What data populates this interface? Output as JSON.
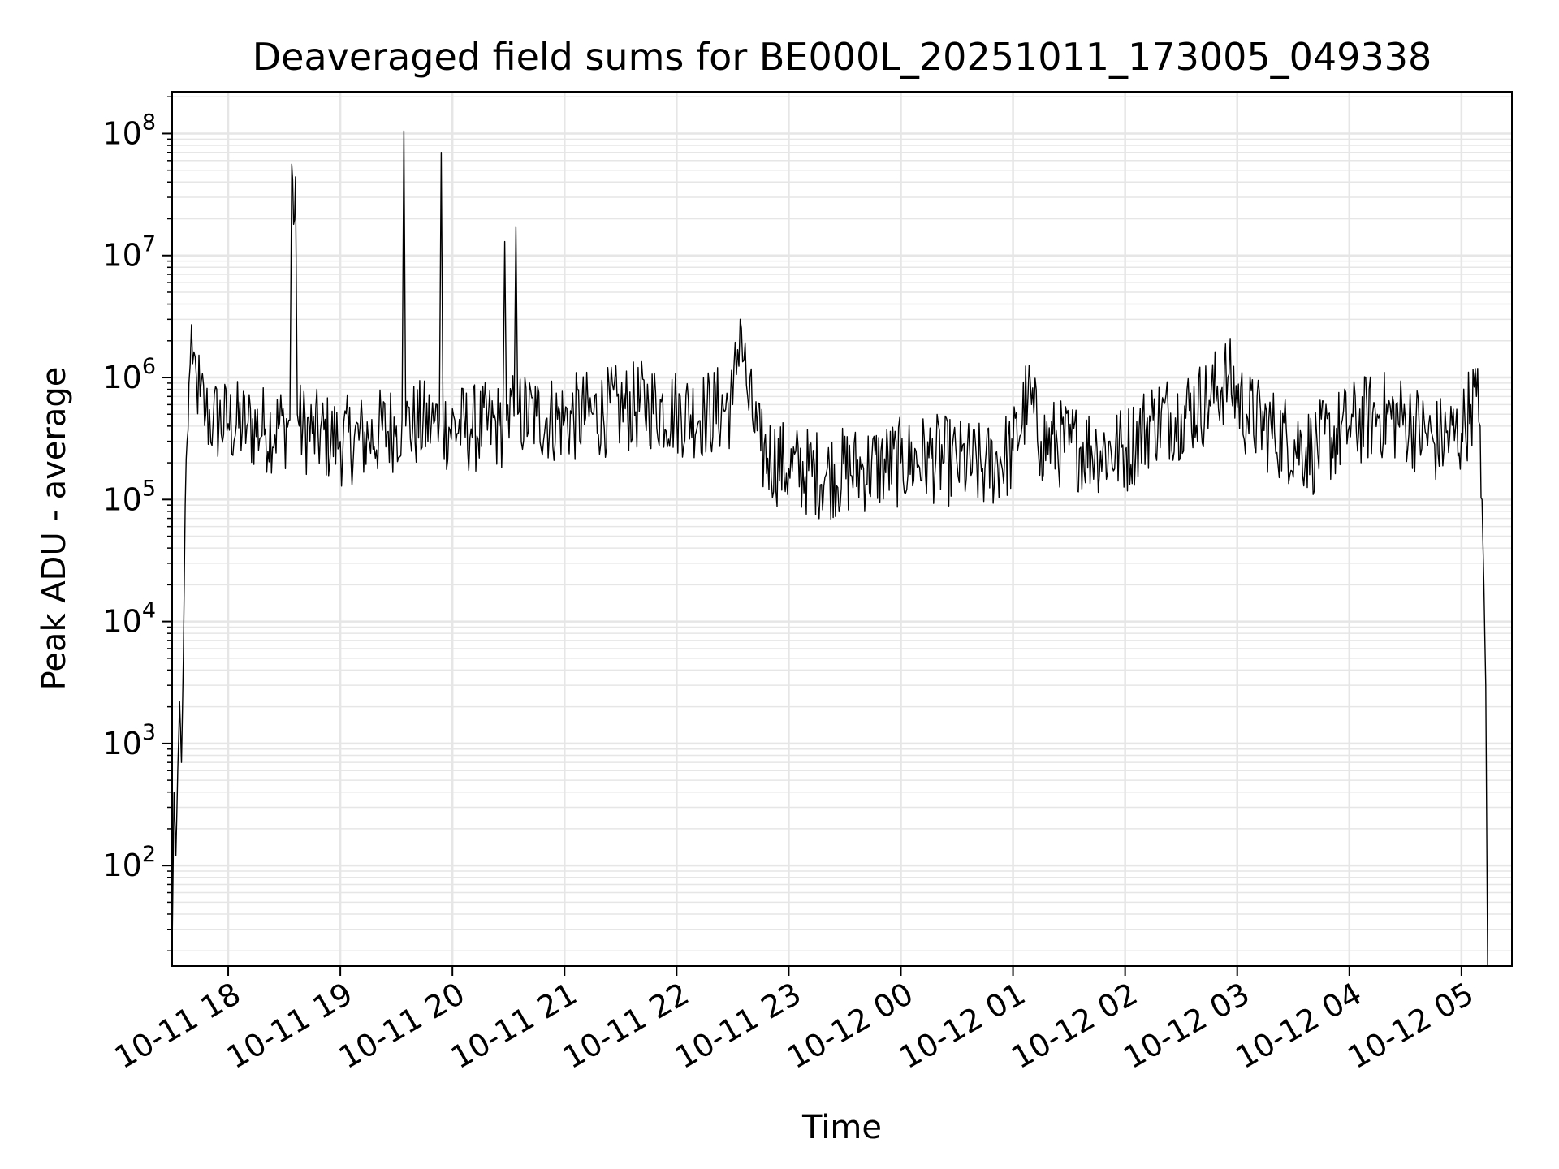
{
  "chart_data": {
    "type": "line",
    "title": "Deaveraged field sums for BE000L_20251011_173005_049338",
    "xlabel": "Time",
    "ylabel": "Peak ADU - average",
    "yscale": "log",
    "grid": true,
    "grid_minor": true,
    "xlim": [
      "2025-10-11T17:30:00",
      "2025-10-12T05:27:00"
    ],
    "ylim": [
      15,
      220000000
    ],
    "x_ticks": [
      {
        "value": "2025-10-11T18:00:00",
        "label": "10-11 18"
      },
      {
        "value": "2025-10-11T19:00:00",
        "label": "10-11 19"
      },
      {
        "value": "2025-10-11T20:00:00",
        "label": "10-11 20"
      },
      {
        "value": "2025-10-11T21:00:00",
        "label": "10-11 21"
      },
      {
        "value": "2025-10-11T22:00:00",
        "label": "10-11 22"
      },
      {
        "value": "2025-10-11T23:00:00",
        "label": "10-11 23"
      },
      {
        "value": "2025-10-12T00:00:00",
        "label": "10-12 00"
      },
      {
        "value": "2025-10-12T01:00:00",
        "label": "10-12 01"
      },
      {
        "value": "2025-10-12T02:00:00",
        "label": "10-12 02"
      },
      {
        "value": "2025-10-12T03:00:00",
        "label": "10-12 03"
      },
      {
        "value": "2025-10-12T04:00:00",
        "label": "10-12 04"
      },
      {
        "value": "2025-10-12T05:00:00",
        "label": "10-12 05"
      }
    ],
    "y_ticks": [
      {
        "value": 100,
        "base": "10",
        "exp": "2"
      },
      {
        "value": 1000,
        "base": "10",
        "exp": "3"
      },
      {
        "value": 10000,
        "base": "10",
        "exp": "4"
      },
      {
        "value": 100000,
        "base": "10",
        "exp": "5"
      },
      {
        "value": 1000000,
        "base": "10",
        "exp": "6"
      },
      {
        "value": 10000000,
        "base": "10",
        "exp": "7"
      },
      {
        "value": 100000000,
        "base": "10",
        "exp": "8"
      }
    ],
    "line_color": "#000000",
    "grid_color": "#e6e6e6",
    "series": [
      {
        "x": [
          "2025-10-11T17:30:00",
          "2025-10-11T17:31:00",
          "2025-10-11T17:32:00",
          "2025-10-11T17:33:00",
          "2025-10-11T17:34:00",
          "2025-10-11T17:35:00",
          "2025-10-11T17:36:00",
          "2025-10-11T17:37:00",
          "2025-10-11T17:38:00",
          "2025-10-11T17:39:00",
          "2025-10-11T17:41:00",
          "2025-10-11T17:43:00",
          "2025-10-11T17:45:00",
          "2025-10-11T17:48:00",
          "2025-10-11T17:52:00",
          "2025-10-11T18:00:00",
          "2025-10-11T18:10:00",
          "2025-10-11T18:20:00",
          "2025-10-11T18:30:00",
          "2025-10-11T18:33:00",
          "2025-10-11T18:34:00",
          "2025-10-11T18:35:00",
          "2025-10-11T18:36:00",
          "2025-10-11T18:37:00",
          "2025-10-11T18:38:00",
          "2025-10-11T18:45:00",
          "2025-10-11T19:00:00",
          "2025-10-11T19:15:00",
          "2025-10-11T19:30:00",
          "2025-10-11T19:33:00",
          "2025-10-11T19:34:00",
          "2025-10-11T19:35:00",
          "2025-10-11T19:50:00",
          "2025-10-11T19:53:00",
          "2025-10-11T19:54:00",
          "2025-10-11T19:55:00",
          "2025-10-11T20:10:00",
          "2025-10-11T20:25:00",
          "2025-10-11T20:27:00",
          "2025-10-11T20:28:00",
          "2025-10-11T20:29:00",
          "2025-10-11T20:33:00",
          "2025-10-11T20:34:00",
          "2025-10-11T20:35:00",
          "2025-10-11T20:45:00",
          "2025-10-11T21:00:00",
          "2025-10-11T21:15:00",
          "2025-10-11T21:30:00",
          "2025-10-11T21:45:00",
          "2025-10-11T22:00:00",
          "2025-10-11T22:15:00",
          "2025-10-11T22:30:00",
          "2025-10-11T22:34:00",
          "2025-10-11T22:38:00",
          "2025-10-11T22:45:00",
          "2025-10-11T23:00:00",
          "2025-10-11T23:20:00",
          "2025-10-11T23:40:00",
          "2025-10-12T00:00:00",
          "2025-10-12T00:15:00",
          "2025-10-12T00:30:00",
          "2025-10-12T00:45:00",
          "2025-10-12T01:00:00",
          "2025-10-12T01:08:00",
          "2025-10-12T01:15:00",
          "2025-10-12T01:30:00",
          "2025-10-12T01:45:00",
          "2025-10-12T02:00:00",
          "2025-10-12T02:15:00",
          "2025-10-12T02:30:00",
          "2025-10-12T02:45:00",
          "2025-10-12T02:55:00",
          "2025-10-12T03:05:00",
          "2025-10-12T03:20:00",
          "2025-10-12T03:40:00",
          "2025-10-12T04:00:00",
          "2025-10-12T04:15:00",
          "2025-10-12T04:30:00",
          "2025-10-12T04:45:00",
          "2025-10-12T05:00:00",
          "2025-10-12T05:05:00",
          "2025-10-12T05:08:00",
          "2025-10-12T05:10:00",
          "2025-10-12T05:11:00",
          "2025-10-12T05:12:00",
          "2025-10-12T05:13:00",
          "2025-10-12T05:14:00"
        ],
        "y": [
          20,
          400,
          120,
          600,
          2200,
          700,
          5000,
          90000,
          300000,
          900000,
          1300000,
          1000000,
          700000,
          500000,
          450000,
          420000,
          400000,
          380000,
          400000,
          450000,
          56000000,
          18000000,
          44000000,
          500000,
          400000,
          350000,
          300000,
          320000,
          400000,
          450000,
          105000000,
          400000,
          420000,
          450000,
          70000000,
          400000,
          380000,
          400000,
          420000,
          13000000,
          450000,
          480000,
          17000000,
          500000,
          480000,
          450000,
          500000,
          550000,
          600000,
          520000,
          500000,
          600000,
          3000000,
          700000,
          250000,
          180000,
          160000,
          180000,
          200000,
          220000,
          200000,
          180000,
          250000,
          700000,
          300000,
          280000,
          260000,
          250000,
          450000,
          500000,
          650000,
          1000000,
          500000,
          350000,
          250000,
          400000,
          500000,
          450000,
          300000,
          350000,
          600000,
          700000,
          400000,
          100000,
          20000,
          3000,
          15
        ]
      }
    ]
  }
}
